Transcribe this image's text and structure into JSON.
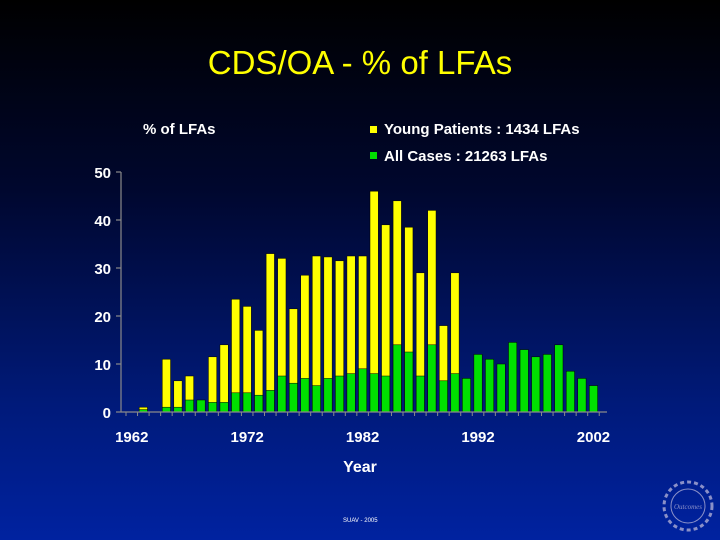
{
  "slide": {
    "title": "CDS/OA - % of LFAs",
    "footer": "SUAV - 2005"
  },
  "chart_data": {
    "type": "bar",
    "title": "CDS/OA - % of LFAs",
    "ylabel": "% of LFAs",
    "xlabel": "Year",
    "ylim": [
      0,
      50
    ],
    "yticks": [
      0,
      10,
      20,
      30,
      40,
      50
    ],
    "xticks": [
      1962,
      1972,
      1982,
      1992,
      2002
    ],
    "x": [
      1963,
      1965,
      1966,
      1967,
      1968,
      1969,
      1970,
      1971,
      1972,
      1973,
      1974,
      1975,
      1976,
      1977,
      1978,
      1979,
      1980,
      1981,
      1982,
      1983,
      1984,
      1985,
      1986,
      1987,
      1988,
      1989,
      1990,
      1991,
      1992,
      1993,
      1994,
      1995,
      1996,
      1997,
      1998,
      1999,
      2000,
      2001,
      2002
    ],
    "series": [
      {
        "name": "Young Patients : 1434 LFAs",
        "color": "#ffff00",
        "values": [
          1,
          11,
          6.5,
          7.5,
          2,
          11.5,
          14,
          23.5,
          22,
          17,
          33,
          32,
          21.5,
          28.5,
          32.5,
          32.3,
          31.5,
          32.5,
          32.5,
          46,
          39,
          44,
          38.5,
          29,
          42,
          18,
          29,
          null,
          null,
          null,
          null,
          null,
          null,
          null,
          null,
          null,
          null,
          null,
          null
        ]
      },
      {
        "name": "All Cases : 21263 LFAs",
        "color": "#00e000",
        "values": [
          0.5,
          1,
          1,
          2.5,
          2.5,
          2,
          2,
          4,
          4,
          3.5,
          4.5,
          7.5,
          6,
          7,
          5.5,
          7,
          7.5,
          8,
          9,
          8,
          7.5,
          14,
          12.5,
          7.5,
          14,
          6.5,
          8,
          7,
          12,
          11,
          10,
          14.5,
          13,
          11.5,
          12,
          14,
          8.5,
          7,
          5.5
        ]
      }
    ]
  },
  "logo": {
    "label": "Outcomes"
  }
}
